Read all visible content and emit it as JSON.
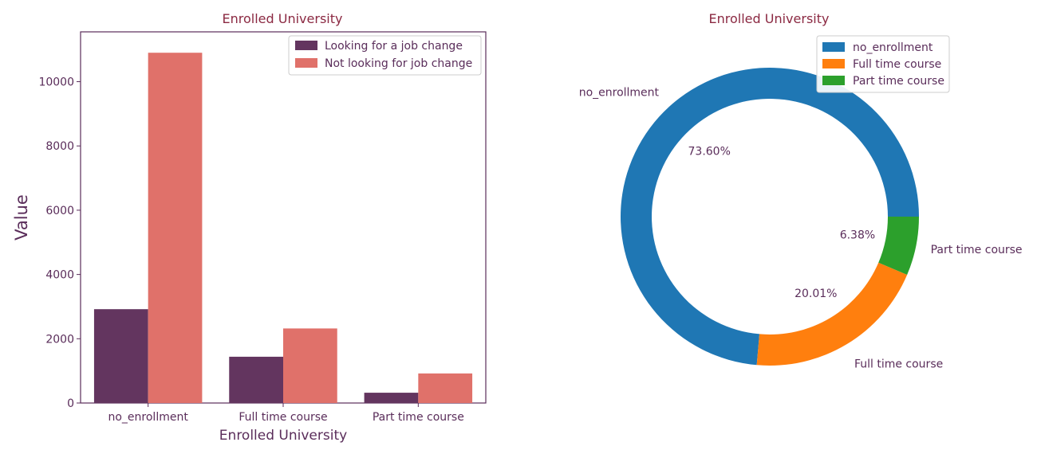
{
  "chart_data": [
    {
      "type": "bar",
      "title": "Enrolled University",
      "xlabel": "Enrolled University",
      "ylabel": "Value",
      "categories": [
        "no_enrollment",
        "Full time course",
        "Part time course"
      ],
      "series": [
        {
          "name": "Looking for a job change",
          "values": [
            2920,
            1440,
            320
          ],
          "color": "#63355f"
        },
        {
          "name": "Not looking for job change",
          "values": [
            10900,
            2320,
            920
          ],
          "color": "#e0716a"
        }
      ],
      "ylim": [
        0,
        11550
      ],
      "yticks": [
        0,
        2000,
        4000,
        6000,
        8000,
        10000
      ],
      "grid": false,
      "legend": "top-right",
      "text_color": "#5a2d5a",
      "title_color": "#8b2942"
    },
    {
      "type": "pie",
      "title": "Enrolled University",
      "donut": true,
      "labels": [
        "no_enrollment",
        "Full time course",
        "Part time course"
      ],
      "values": [
        73.6,
        20.01,
        6.38
      ],
      "value_labels": [
        "73.60%",
        "20.01%",
        "6.38%"
      ],
      "colors": [
        "#1f77b4",
        "#ff7f0e",
        "#2ca02c"
      ],
      "legend": "top-right",
      "text_color": "#5a2d5a",
      "title_color": "#8b2942"
    }
  ]
}
